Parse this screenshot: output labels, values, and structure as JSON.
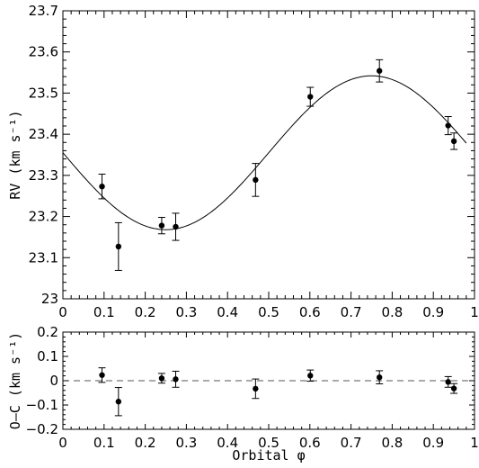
{
  "chart_data": [
    {
      "type": "scatter",
      "panel": "top",
      "xlabel": "",
      "ylabel": "RV (km s⁻¹)",
      "xlim": [
        0,
        1
      ],
      "ylim": [
        23.0,
        23.7
      ],
      "x_ticks": [
        0,
        0.1,
        0.2,
        0.3,
        0.4,
        0.5,
        0.6,
        0.7,
        0.8,
        0.9,
        1
      ],
      "x_tick_labels": [
        "0",
        "0.1",
        "0.2",
        "0.3",
        "0.4",
        "0.5",
        "0.6",
        "0.7",
        "0.8",
        "0.9",
        "1"
      ],
      "y_ticks": [
        23.0,
        23.1,
        23.2,
        23.3,
        23.4,
        23.5,
        23.6,
        23.7
      ],
      "y_tick_labels": [
        "23",
        "23.1",
        "23.2",
        "23.3",
        "23.4",
        "23.5",
        "23.6",
        "23.7"
      ],
      "grid": false,
      "series": [
        {
          "kind": "points-with-errorbars",
          "points": [
            {
              "x": 0.095,
              "y": 23.273,
              "err": 0.03
            },
            {
              "x": 0.135,
              "y": 23.127,
              "err": 0.058
            },
            {
              "x": 0.24,
              "y": 23.178,
              "err": 0.02
            },
            {
              "x": 0.274,
              "y": 23.175,
              "err": 0.033
            },
            {
              "x": 0.468,
              "y": 23.289,
              "err": 0.04
            },
            {
              "x": 0.601,
              "y": 23.491,
              "err": 0.023
            },
            {
              "x": 0.769,
              "y": 23.554,
              "err": 0.027
            },
            {
              "x": 0.936,
              "y": 23.421,
              "err": 0.022
            },
            {
              "x": 0.95,
              "y": 23.383,
              "err": 0.02
            }
          ]
        },
        {
          "kind": "model-curve",
          "x_range": [
            0,
            0.98
          ],
          "mean": 23.355,
          "amplitude": 0.187,
          "phase_of_minimum": 0.25
        }
      ]
    },
    {
      "type": "scatter",
      "panel": "bottom",
      "xlabel": "Orbital φ",
      "ylabel": "O–C (km s⁻¹)",
      "xlim": [
        0,
        1
      ],
      "ylim": [
        -0.2,
        0.2
      ],
      "x_ticks": [
        0,
        0.1,
        0.2,
        0.3,
        0.4,
        0.5,
        0.6,
        0.7,
        0.8,
        0.9,
        1
      ],
      "x_tick_labels": [
        "0",
        "0.1",
        "0.2",
        "0.3",
        "0.4",
        "0.5",
        "0.6",
        "0.7",
        "0.8",
        "0.9",
        "1"
      ],
      "y_ticks": [
        -0.2,
        -0.1,
        0,
        0.1,
        0.2
      ],
      "y_tick_labels": [
        "−0.2",
        "−0.1",
        "0",
        "0.1",
        "0.2"
      ],
      "grid": false,
      "zero_line": "dashed",
      "series": [
        {
          "kind": "points-with-errorbars",
          "points": [
            {
              "x": 0.095,
              "y": 0.023,
              "err": 0.03
            },
            {
              "x": 0.135,
              "y": -0.086,
              "err": 0.058
            },
            {
              "x": 0.24,
              "y": 0.01,
              "err": 0.02
            },
            {
              "x": 0.274,
              "y": 0.006,
              "err": 0.033
            },
            {
              "x": 0.468,
              "y": -0.033,
              "err": 0.04
            },
            {
              "x": 0.601,
              "y": 0.021,
              "err": 0.023
            },
            {
              "x": 0.769,
              "y": 0.014,
              "err": 0.027
            },
            {
              "x": 0.936,
              "y": -0.005,
              "err": 0.022
            },
            {
              "x": 0.95,
              "y": -0.032,
              "err": 0.02
            }
          ]
        }
      ]
    }
  ]
}
